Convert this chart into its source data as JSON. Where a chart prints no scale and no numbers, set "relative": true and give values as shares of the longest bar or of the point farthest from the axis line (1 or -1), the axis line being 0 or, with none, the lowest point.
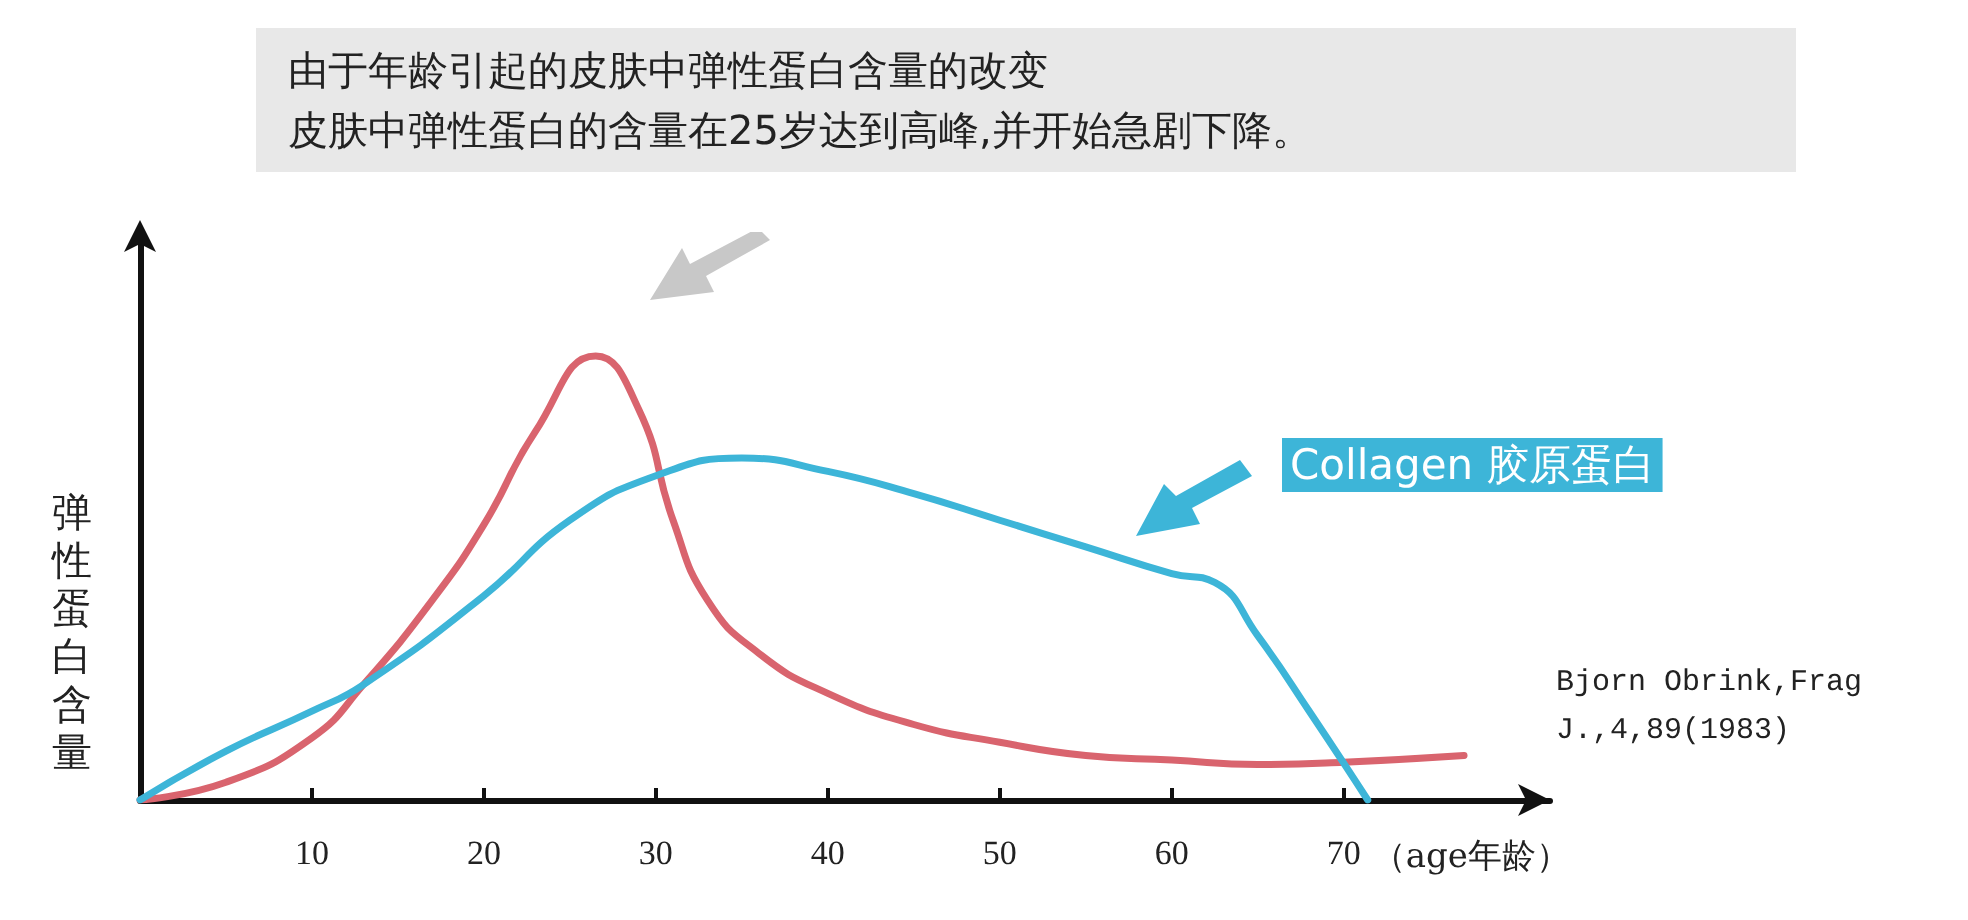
{
  "chart_data": {
    "type": "line",
    "title": "由于年龄引起的皮肤中弹性蛋白含量的改变",
    "subtitle": "皮肤中弹性蛋白的含量在25岁达到高峰,并开始急剧下降。",
    "xlabel": "（age年龄）",
    "ylabel": "弹性蛋白含量",
    "relative": true,
    "xlim": [
      0,
      82
    ],
    "xticks": [
      10,
      20,
      30,
      40,
      50,
      60,
      70
    ],
    "grid": false,
    "legend": false,
    "marker": "none",
    "line_style": "solid",
    "annotations": [
      "Bjorn Obrink,Frag J.,4,89(1983)"
    ],
    "series": [
      {
        "color": "#d9646e",
        "x": [
          0,
          5,
          10,
          13,
          17,
          20,
          23,
          26.5,
          29,
          31,
          33,
          36,
          40,
          45,
          50,
          55,
          60,
          65,
          70,
          77
        ],
        "values": [
          0,
          0.04,
          0.14,
          0.26,
          0.45,
          0.62,
          0.83,
          1,
          0.88,
          0.63,
          0.45,
          0.33,
          0.24,
          0.17,
          0.13,
          0.1,
          0.09,
          0.08,
          0.085,
          0.1
        ]
      },
      {
        "name": "Collagen 胶原蛋白",
        "color": "#3db5d8",
        "x": [
          0,
          5,
          10,
          13,
          20,
          25,
          30,
          35,
          40,
          45,
          50,
          55,
          60,
          62.5,
          65,
          68,
          71.4
        ],
        "values": [
          0,
          0.11,
          0.2,
          0.26,
          0.46,
          0.63,
          0.73,
          0.77,
          0.74,
          0.69,
          0.63,
          0.57,
          0.51,
          0.49,
          0.37,
          0.2,
          0
        ]
      }
    ]
  }
}
